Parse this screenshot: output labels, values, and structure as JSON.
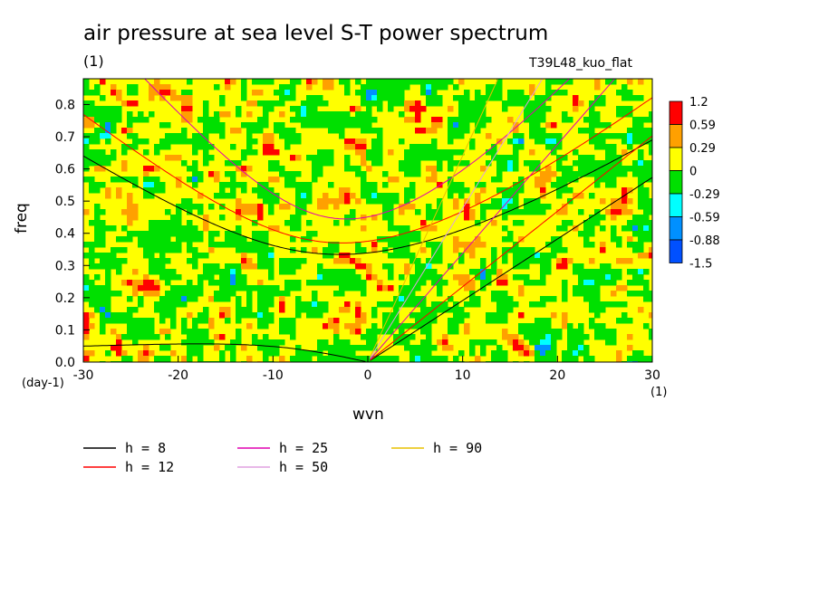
{
  "title": "air pressure at sea level S-T power spectrum",
  "unit_label": "(1)",
  "run_name": "T39L48_kuo_flat",
  "y_unit": "(day-1)",
  "x_unit": "(1)",
  "colors": {
    "background": "#ffffff",
    "level_colors": [
      "#0050ff",
      "#0090ff",
      "#00ffff",
      "#00e000",
      "#ffff00",
      "#ffa000",
      "#ff0000"
    ]
  },
  "chart_data": {
    "type": "heatmap",
    "xlabel": "wvn",
    "ylabel": "freq",
    "xlim": [
      -30,
      30
    ],
    "ylim": [
      0,
      0.88
    ],
    "xticks": [
      -30,
      -20,
      -10,
      0,
      10,
      20,
      30
    ],
    "yticks": [
      0.0,
      0.1,
      0.2,
      0.3,
      0.4,
      0.5,
      0.6,
      0.7,
      0.8
    ],
    "colorbar": {
      "levels": [
        "1.2",
        "0.59",
        "0.29",
        "0",
        "-0.29",
        "-0.59",
        "-0.88",
        "-1.5"
      ],
      "colors": [
        "#ff0000",
        "#ffa000",
        "#ffff00",
        "#00e000",
        "#00ffff",
        "#0090ff",
        "#0050ff"
      ]
    },
    "legend": [
      {
        "label": "h =  8",
        "color": "#000000"
      },
      {
        "label": "h = 12",
        "color": "#ff0000"
      },
      {
        "label": "h = 25",
        "color": "#e000b0"
      },
      {
        "label": "h = 50",
        "color": "#e0a0e0"
      },
      {
        "label": "h = 90",
        "color": "#e8c000"
      }
    ],
    "curves": [
      {
        "h": 8,
        "color": "#000000",
        "mode": "rossby",
        "n": 1
      },
      {
        "h": 8,
        "color": "#000000",
        "mode": "gravity",
        "n": 1
      },
      {
        "h": 8,
        "color": "#000000",
        "mode": "kelvin"
      },
      {
        "h": 12,
        "color": "#ff0000",
        "mode": "gravity",
        "n": 1
      },
      {
        "h": 12,
        "color": "#ff0000",
        "mode": "kelvin"
      },
      {
        "h": 25,
        "color": "#e000b0",
        "mode": "gravity",
        "n": 1
      },
      {
        "h": 25,
        "color": "#e000b0",
        "mode": "kelvin"
      },
      {
        "h": 50,
        "color": "#e0a0e0",
        "mode": "kelvin"
      },
      {
        "h": 90,
        "color": "#e8c000",
        "mode": "kelvin"
      }
    ]
  }
}
